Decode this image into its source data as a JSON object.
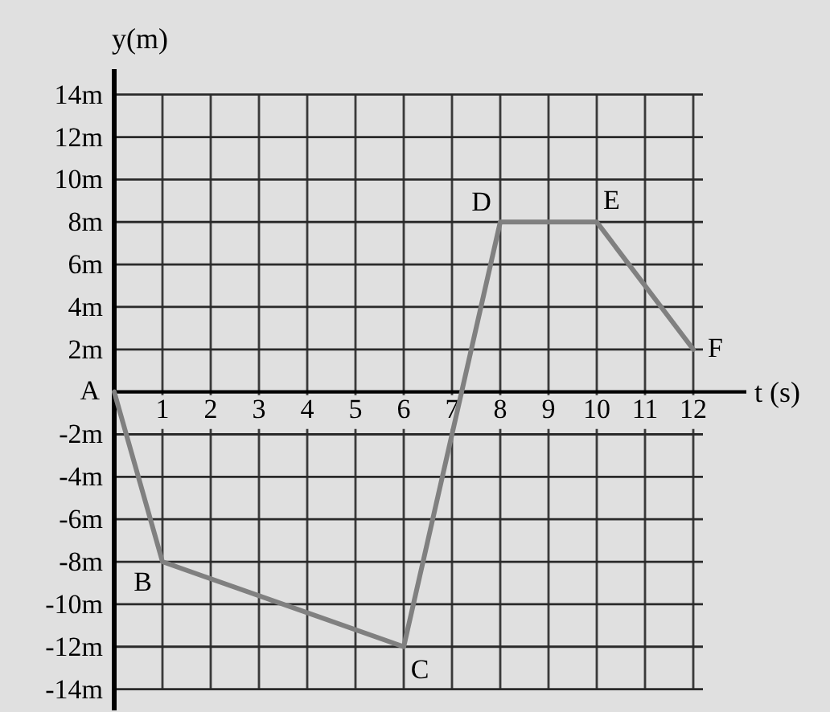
{
  "chart_data": {
    "type": "line",
    "xlabel": "t (s)",
    "ylabel": "y(m)",
    "x": [
      0,
      1,
      6,
      8,
      10,
      12
    ],
    "series": [
      {
        "color": "#808080",
        "values": [
          0,
          -8,
          -12,
          8,
          8,
          2
        ]
      }
    ],
    "xlim": [
      0,
      13.1
    ],
    "ylim": [
      -15,
      15.2
    ],
    "xticks": [
      1,
      2,
      3,
      4,
      5,
      6,
      7,
      8,
      9,
      10,
      11,
      12
    ],
    "yticks": [
      {
        "value": 14,
        "label": "14m"
      },
      {
        "value": 12,
        "label": "12m"
      },
      {
        "value": 10,
        "label": "10m"
      },
      {
        "value": 8,
        "label": "8m"
      },
      {
        "value": 6,
        "label": "6m"
      },
      {
        "value": 4,
        "label": "4m"
      },
      {
        "value": 2,
        "label": "2m"
      },
      {
        "value": -2,
        "label": "-2m"
      },
      {
        "value": -4,
        "label": "-4m"
      },
      {
        "value": -6,
        "label": "-6m"
      },
      {
        "value": -8,
        "label": "-8m"
      },
      {
        "value": -10,
        "label": "-10m"
      },
      {
        "value": -12,
        "label": "-12m"
      },
      {
        "value": -14,
        "label": "-14m"
      }
    ],
    "grid": true,
    "annotations": [
      {
        "text": "A",
        "x": 0,
        "y": 0
      },
      {
        "text": "B",
        "x": 1,
        "y": -8
      },
      {
        "text": "C",
        "x": 6,
        "y": -12
      },
      {
        "text": "D",
        "x": 8,
        "y": 8
      },
      {
        "text": "E",
        "x": 10,
        "y": 8
      },
      {
        "text": "F",
        "x": 12,
        "y": 2
      }
    ]
  }
}
